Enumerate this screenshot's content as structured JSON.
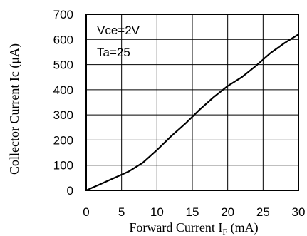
{
  "chart_data": {
    "type": "line",
    "xlabel": "Forward Current I",
    "xlabel_sub": "F",
    "xlabel_unit": " (mA)",
    "ylabel": "Collector Current Ic (μA)",
    "xlim": [
      0,
      30
    ],
    "ylim": [
      0,
      700
    ],
    "x_ticks": [
      "0",
      "5",
      "10",
      "15",
      "20",
      "25",
      "30"
    ],
    "y_ticks": [
      "0",
      "100",
      "200",
      "300",
      "400",
      "500",
      "600",
      "700"
    ],
    "grid": true,
    "annotations": [
      "Vce=2V",
      "Ta=25"
    ],
    "series": [
      {
        "x": [
          0,
          2,
          4,
          6,
          8,
          10,
          12,
          14,
          16,
          18,
          20,
          22,
          24,
          26,
          28,
          30
        ],
        "y": [
          0,
          25,
          50,
          75,
          110,
          160,
          215,
          265,
          320,
          370,
          415,
          450,
          495,
          545,
          585,
          620
        ]
      }
    ]
  }
}
